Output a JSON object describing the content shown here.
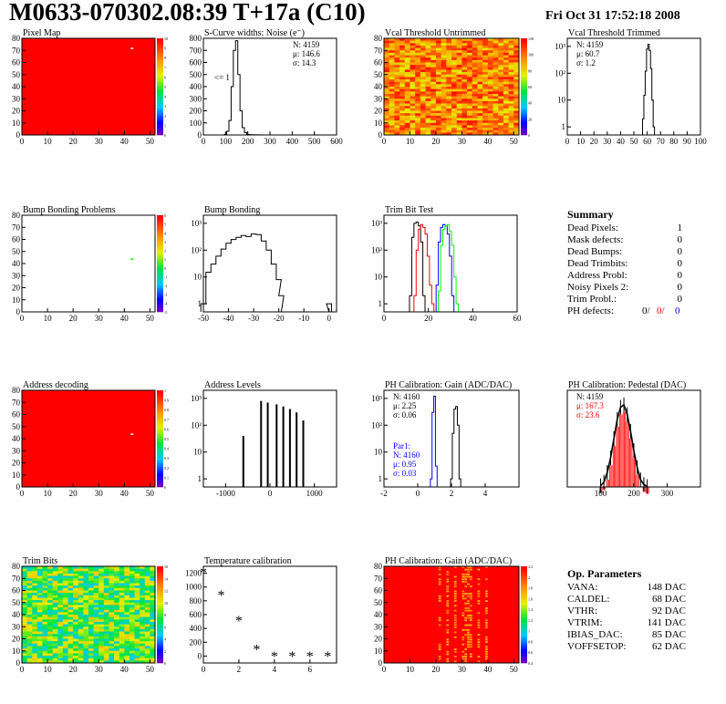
{
  "header": {
    "title": "M0633-070302.08:39 T+17a (C10)",
    "date": "Fri Oct 31 17:52:18 2008"
  },
  "colors": {
    "red": "#ff0000",
    "blue": "#0000ff",
    "green": "#00ff00",
    "black": "#000000"
  },
  "chart_data": [
    {
      "id": "pixel-map",
      "type": "heatmap",
      "title": "Pixel Map",
      "xlim": [
        0,
        52
      ],
      "ylim": [
        0,
        80
      ],
      "xticks": [
        "0",
        "10",
        "20",
        "30",
        "40",
        "50"
      ],
      "yticks": [
        "0",
        "10",
        "20",
        "30",
        "40",
        "50",
        "60",
        "70",
        "80"
      ],
      "zticks": [
        "0",
        "1",
        "2",
        "3",
        "4",
        "5",
        "6",
        "7",
        "8",
        "9",
        "10"
      ],
      "fill": "red",
      "markers": [
        {
          "x": 42.5,
          "y": 71.5,
          "color": "white"
        }
      ]
    },
    {
      "id": "scurve",
      "type": "line",
      "title": "S-Curve widths: Noise (e⁻)",
      "xlim": [
        0,
        600
      ],
      "ylim": [
        0,
        800
      ],
      "xticks": [
        "0",
        "100",
        "200",
        "300",
        "400",
        "500",
        "600"
      ],
      "yticks": [
        "0",
        "100",
        "200",
        "300",
        "400",
        "500",
        "600",
        "700",
        "800"
      ],
      "stats": [
        "N: 4159",
        "μ: 146.6",
        "σ: 14.3"
      ],
      "annotation": "<= 1",
      "series": [
        {
          "x": [
            90,
            100,
            110,
            120,
            130,
            140,
            150,
            160,
            170,
            180,
            190,
            200,
            220,
            250,
            280
          ],
          "values": [
            0,
            5,
            30,
            120,
            400,
            700,
            780,
            500,
            200,
            60,
            20,
            5,
            2,
            1,
            0
          ]
        }
      ]
    },
    {
      "id": "vcal-untrimmed",
      "type": "heatmap",
      "title": "Vcal Threshold Untrimmed",
      "xlim": [
        0,
        52
      ],
      "ylim": [
        0,
        80
      ],
      "xticks": [
        "0",
        "10",
        "20",
        "30",
        "40",
        "50"
      ],
      "yticks": [
        "0",
        "10",
        "20",
        "30",
        "40",
        "50",
        "60",
        "70",
        "80"
      ],
      "zticks": [
        "0",
        "20",
        "40",
        "60",
        "80",
        "100",
        "120"
      ],
      "fill": "orange-yellow"
    },
    {
      "id": "vcal-trimmed",
      "type": "line",
      "title": "Vcal Threshold Trimmed",
      "xlim": [
        0,
        100
      ],
      "ylim": [
        0.5,
        2000
      ],
      "yscale": "log",
      "xticks": [
        "0",
        "10",
        "20",
        "30",
        "40",
        "50",
        "60",
        "70",
        "80",
        "90",
        "100"
      ],
      "yticks": [
        "1",
        "10",
        "10²",
        "10³"
      ],
      "stats": [
        "N: 4159",
        "μ: 60.7",
        "σ: 1.2"
      ],
      "series": [
        {
          "x": [
            56,
            57,
            58,
            59,
            60,
            61,
            62,
            63,
            64,
            65,
            66
          ],
          "values": [
            0.5,
            2,
            15,
            120,
            800,
            1200,
            700,
            150,
            10,
            1,
            0.5
          ]
        }
      ]
    },
    {
      "id": "bump-problems",
      "type": "heatmap",
      "title": "Bump Bonding Problems",
      "xlim": [
        0,
        52
      ],
      "ylim": [
        0,
        80
      ],
      "xticks": [
        "0",
        "10",
        "20",
        "30",
        "40",
        "50"
      ],
      "yticks": [
        "0",
        "10",
        "20",
        "30",
        "40",
        "50",
        "60",
        "70",
        "80"
      ],
      "zticks": [
        "-5",
        "-4",
        "-3",
        "-2",
        "-1",
        "0",
        "1",
        "2",
        "3",
        "4",
        "5",
        "6"
      ],
      "fill": "white",
      "markers": [
        {
          "x": 42.5,
          "y": 43.5,
          "color": "green"
        }
      ]
    },
    {
      "id": "bump-bonding",
      "type": "line",
      "title": "Bump Bonding",
      "xlim": [
        -50,
        3
      ],
      "ylim": [
        0.5,
        2000
      ],
      "yscale": "log",
      "xticks": [
        "-50",
        "-40",
        "-30",
        "-20",
        "-10",
        "0"
      ],
      "yticks": [
        "1",
        "10",
        "10²",
        "10³"
      ],
      "series": [
        {
          "x": [
            -50,
            -48,
            -46,
            -44,
            -42,
            -40,
            -38,
            -36,
            -34,
            -32,
            -30,
            -28,
            -26,
            -24,
            -22,
            -20,
            -19,
            -18,
            -1,
            0
          ],
          "values": [
            1,
            15,
            30,
            60,
            110,
            180,
            250,
            300,
            350,
            320,
            400,
            380,
            220,
            100,
            30,
            8,
            2,
            0.5,
            0.5,
            1
          ]
        }
      ]
    },
    {
      "id": "trim-bit-test",
      "type": "line",
      "title": "Trim Bit Test",
      "xlim": [
        0,
        60
      ],
      "ylim": [
        0.5,
        2000
      ],
      "yscale": "log",
      "xticks": [
        "0",
        "20",
        "40",
        "60"
      ],
      "yticks": [
        "1",
        "10",
        "10²",
        "10³"
      ],
      "series": [
        {
          "color": "black",
          "x": [
            12,
            13,
            14,
            15,
            16,
            17,
            18
          ],
          "values": [
            2,
            300,
            1000,
            1100,
            800,
            200,
            2
          ]
        },
        {
          "color": "red",
          "x": [
            14,
            15,
            16,
            17,
            18,
            19,
            20,
            21,
            22
          ],
          "values": [
            2,
            100,
            600,
            900,
            700,
            400,
            60,
            5,
            1
          ]
        },
        {
          "color": "blue",
          "x": [
            24,
            25,
            26,
            27,
            28,
            29,
            30,
            31
          ],
          "values": [
            5,
            200,
            700,
            900,
            800,
            400,
            60,
            2
          ]
        },
        {
          "color": "green",
          "x": [
            25,
            26,
            27,
            28,
            29,
            30,
            31,
            32,
            33
          ],
          "values": [
            3,
            150,
            600,
            800,
            900,
            500,
            150,
            10,
            1
          ]
        }
      ]
    },
    {
      "id": "address-decoding",
      "type": "heatmap",
      "title": "Address decoding",
      "xlim": [
        0,
        52
      ],
      "ylim": [
        0,
        80
      ],
      "xticks": [
        "0",
        "10",
        "20",
        "30",
        "40",
        "50"
      ],
      "yticks": [
        "0",
        "10",
        "20",
        "30",
        "40",
        "50",
        "60",
        "70",
        "80"
      ],
      "zticks": [
        "0",
        "0.1",
        "0.2",
        "0.3",
        "0.4",
        "0.5",
        "0.6",
        "0.7",
        "0.8",
        "0.9",
        "1"
      ],
      "fill": "red",
      "markers": [
        {
          "x": 42.5,
          "y": 43.5,
          "color": "white"
        }
      ]
    },
    {
      "id": "address-levels",
      "type": "bar",
      "title": "Address Levels",
      "xlim": [
        -1500,
        1500
      ],
      "ylim": [
        0.5,
        2000
      ],
      "yscale": "log",
      "xticks": [
        "-1000",
        "0",
        "1000"
      ],
      "yticks": [
        "1",
        "10",
        "10²",
        "10³"
      ],
      "series": [
        {
          "x": [
            -600,
            -200,
            -50,
            150,
            300,
            450,
            600,
            750
          ],
          "values": [
            40,
            800,
            700,
            600,
            500,
            400,
            300,
            150
          ]
        }
      ]
    },
    {
      "id": "ph-gain",
      "type": "line",
      "title": "PH Calibration: Gain (ADC/DAC)",
      "xlim": [
        -2,
        6
      ],
      "ylim": [
        0.5,
        2000
      ],
      "yscale": "log",
      "xticks": [
        "-2",
        "0",
        "2",
        "4"
      ],
      "yticks": [
        "1",
        "10",
        "10²",
        "10³"
      ],
      "stats": [
        "N: 4160",
        "μ: 2.25",
        "σ: 0.06"
      ],
      "par1_stats": [
        "Par1:",
        "N: 4160",
        "μ: 0.95",
        "σ: 0.03"
      ],
      "series": [
        {
          "color": "black",
          "x": [
            2.0,
            2.1,
            2.2,
            2.3,
            2.4,
            2.5
          ],
          "values": [
            1,
            50,
            400,
            500,
            100,
            1
          ]
        },
        {
          "color": "blue",
          "x": [
            0.8,
            0.9,
            1.0,
            1.1
          ],
          "values": [
            1,
            300,
            1200,
            3
          ]
        }
      ]
    },
    {
      "id": "ph-pedestal",
      "type": "line",
      "title": "PH Calibration: Pedestal (DAC)",
      "xlim": [
        0,
        400
      ],
      "ylim": [
        0,
        400
      ],
      "xticks": [
        "100",
        "200",
        "300"
      ],
      "stats": [
        "N: 4159",
        "μ: 167.3",
        "σ: 23.6"
      ],
      "series": [
        {
          "x": [
            100,
            110,
            120,
            130,
            140,
            150,
            160,
            170,
            180,
            190,
            200,
            210,
            220,
            230,
            240
          ],
          "values": [
            5,
            20,
            60,
            120,
            200,
            280,
            330,
            340,
            300,
            230,
            150,
            80,
            30,
            10,
            2
          ]
        }
      ]
    },
    {
      "id": "trim-bits",
      "type": "heatmap",
      "title": "Trim Bits",
      "xlim": [
        0,
        52
      ],
      "ylim": [
        0,
        80
      ],
      "xticks": [
        "0",
        "10",
        "20",
        "30",
        "40",
        "50"
      ],
      "yticks": [
        "0",
        "10",
        "20",
        "30",
        "40",
        "50",
        "60",
        "70",
        "80"
      ],
      "zticks": [
        "0",
        "2",
        "4",
        "6",
        "8",
        "10",
        "12",
        "14",
        "16"
      ],
      "fill": "green-yellow"
    },
    {
      "id": "temperature",
      "type": "scatter",
      "title": "Temperature calibration",
      "xlim": [
        0,
        7.5
      ],
      "ylim": [
        -100,
        1300
      ],
      "xticks": [
        "0",
        "2",
        "4",
        "6"
      ],
      "yticks": [
        "0",
        "200",
        "400",
        "600",
        "800",
        "1000",
        "1200"
      ],
      "series": [
        {
          "x": [
            0,
            1,
            2,
            3,
            4,
            5,
            6,
            7
          ],
          "values": [
            1210,
            880,
            510,
            90,
            -10,
            -10,
            -10,
            -10
          ]
        }
      ]
    },
    {
      "id": "ph-gain-map",
      "type": "heatmap",
      "title": "PH Calibration: Gain (ADC/DAC)",
      "xlim": [
        0,
        52
      ],
      "ylim": [
        0,
        80
      ],
      "xticks": [
        "0",
        "10",
        "20",
        "30",
        "40",
        "50"
      ],
      "yticks": [
        "0",
        "10",
        "20",
        "30",
        "40",
        "50",
        "60",
        "70",
        "80"
      ],
      "zticks": [
        "0.4",
        "0.6",
        "0.8",
        "1",
        "1.2",
        "1.4",
        "1.6",
        "1.8",
        "2",
        "2.2"
      ],
      "fill": "red"
    }
  ],
  "summary": {
    "title": "Summary",
    "rows": [
      {
        "label": "Dead Pixels:",
        "value": "1"
      },
      {
        "label": "Mask defects:",
        "value": "0"
      },
      {
        "label": "Dead Bumps:",
        "value": "0"
      },
      {
        "label": "Dead Trimbits:",
        "value": "0"
      },
      {
        "label": "Address Probl:",
        "value": "0"
      },
      {
        "label": "Noisy Pixels 2:",
        "value": "0"
      },
      {
        "label": "Trim Probl.:",
        "value": "0"
      }
    ],
    "ph_defects": {
      "label": "PH defects:",
      "black": "0/",
      "red": "0/",
      "blue": "0"
    }
  },
  "op_params": {
    "title": "Op. Parameters",
    "rows": [
      {
        "label": "VANA:",
        "value": "148 DAC"
      },
      {
        "label": "CALDEL:",
        "value": "68 DAC"
      },
      {
        "label": "VTHR:",
        "value": "92 DAC"
      },
      {
        "label": "VTRIM:",
        "value": "141 DAC"
      },
      {
        "label": "IBIAS_DAC:",
        "value": "85 DAC"
      },
      {
        "label": "VOFFSETOP:",
        "value": "62 DAC"
      }
    ]
  }
}
